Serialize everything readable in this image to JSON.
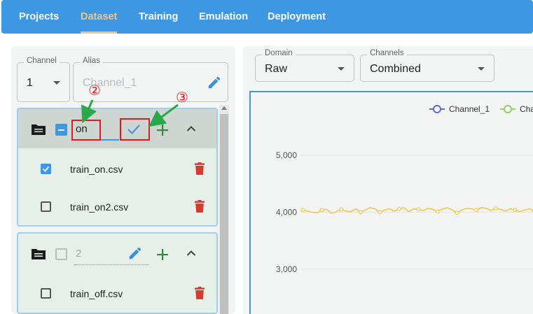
{
  "nav": {
    "tabs": [
      {
        "label": "Projects",
        "active": false
      },
      {
        "label": "Dataset",
        "active": true
      },
      {
        "label": "Training",
        "active": false
      },
      {
        "label": "Emulation",
        "active": false
      },
      {
        "label": "Deployment",
        "active": false
      }
    ]
  },
  "left": {
    "channel": {
      "label": "Channel",
      "value": "1"
    },
    "alias": {
      "label": "Alias",
      "placeholder": "Channel_1"
    },
    "groups": [
      {
        "name_input": "on",
        "files": [
          {
            "name": "train_on.csv",
            "checked": true
          },
          {
            "name": "train_on2.csv",
            "checked": false
          }
        ]
      },
      {
        "name_input": "2",
        "files": [
          {
            "name": "train_off.csv",
            "checked": false
          }
        ]
      }
    ]
  },
  "right": {
    "domain": {
      "label": "Domain",
      "value": "Raw"
    },
    "channels": {
      "label": "Channels",
      "value": "Combined"
    }
  },
  "chart_data": {
    "type": "line",
    "series": [
      {
        "name": "Channel_1",
        "color": "#5b6cc9"
      },
      {
        "name": "Cha",
        "color": "#8fd16a"
      }
    ],
    "line_color": "#f3c74c",
    "y_ticks": [
      "5,000",
      "4,000",
      "3,000"
    ],
    "y_tick_values": [
      5000,
      4000,
      3000
    ],
    "ylim": [
      2500,
      5500
    ],
    "visible_line_values": [
      4040,
      4020,
      4000,
      3990,
      4040,
      4050,
      3980,
      4010,
      4050,
      4020,
      4010,
      4060,
      4000,
      4040,
      4080,
      4060,
      4000,
      4040,
      4060,
      4020,
      4060,
      4080,
      4010,
      4060,
      4050,
      4030,
      4070,
      4050,
      4010,
      4060,
      4080,
      4040,
      3990,
      4040,
      4070,
      4060,
      4040,
      4080,
      4070,
      4030,
      4070,
      4050,
      4020,
      4060,
      4040,
      4010,
      4040,
      4060,
      4020
    ]
  },
  "annotations": {
    "step2": "②",
    "step3": "③"
  },
  "colors": {
    "accent": "#3d97e3",
    "delete": "#d93a2f",
    "add": "#2e8b3a",
    "annotation": "#e01b1b"
  }
}
